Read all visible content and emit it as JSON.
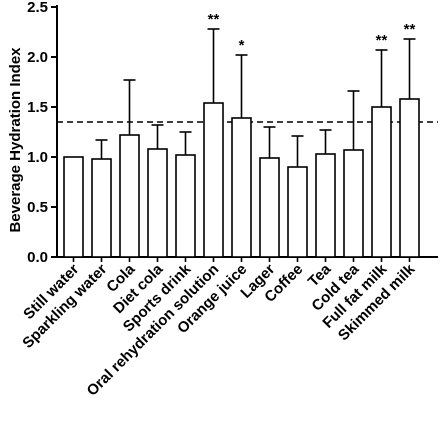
{
  "chart_data": {
    "type": "bar",
    "title": "",
    "xlabel": "",
    "ylabel": "Beverage Hydration Index",
    "ylim": [
      0,
      2.5
    ],
    "yticks": [
      "0.0",
      "0.5",
      "1.0",
      "1.5",
      "2.0",
      "2.5"
    ],
    "categories": [
      "Still water",
      "Sparkling water",
      "Cola",
      "Diet cola",
      "Sports drink",
      "Oral rehydration solution",
      "Orange juice",
      "Lager",
      "Coffee",
      "Tea",
      "Cold tea",
      "Full fat milk",
      "Skimmed milk"
    ],
    "values": [
      1.0,
      0.98,
      1.22,
      1.08,
      1.02,
      1.54,
      1.39,
      0.99,
      0.9,
      1.03,
      1.07,
      1.5,
      1.58
    ],
    "error_upper": [
      0.0,
      0.19,
      0.55,
      0.24,
      0.23,
      0.74,
      0.63,
      0.31,
      0.31,
      0.24,
      0.59,
      0.57,
      0.6
    ],
    "significance": [
      "",
      "",
      "",
      "",
      "",
      "**",
      "*",
      "",
      "",
      "",
      "",
      "**",
      "**"
    ],
    "reference_line": 1.35,
    "grid": false,
    "legend": "none",
    "colors": {
      "bar_fill": "#ffffff",
      "bar_stroke": "#000000"
    }
  }
}
